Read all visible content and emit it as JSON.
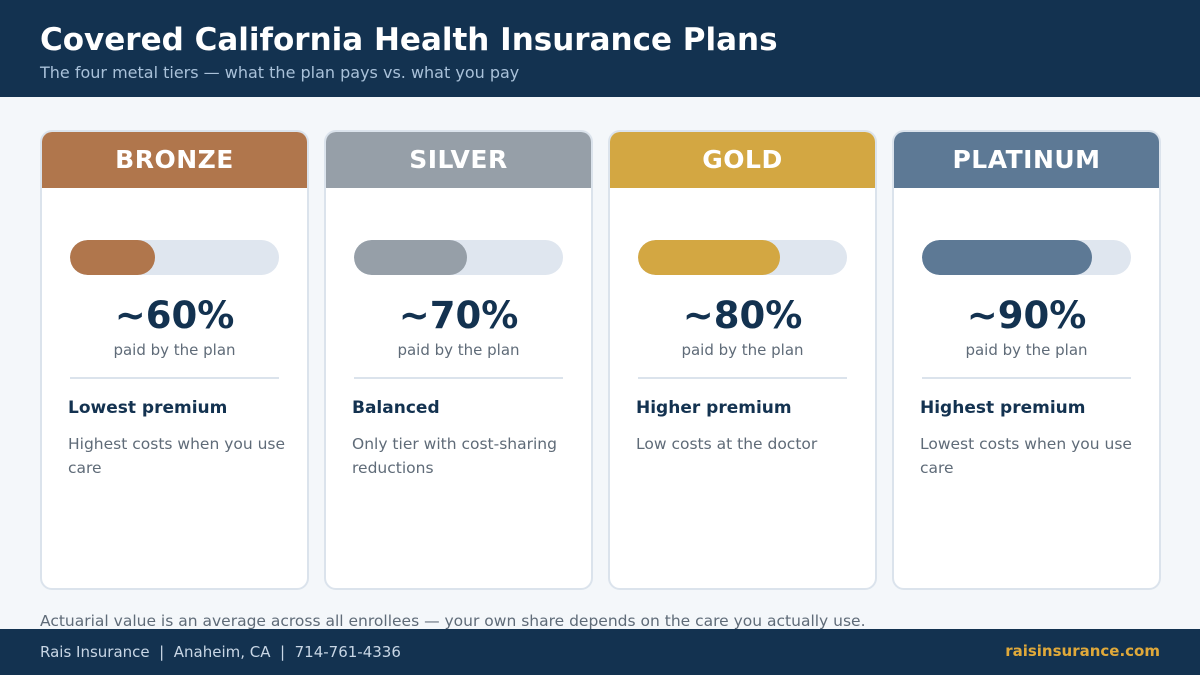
{
  "header": {
    "title": "Covered California Health Insurance Plans",
    "subtitle": "The four metal tiers — what the plan pays vs. what you pay"
  },
  "tiers": [
    {
      "name": "BRONZE",
      "color": "#b0764c",
      "plan_share": 0.6,
      "percent_label": "~60%",
      "percent_caption": "paid by the plan",
      "heading": "Lowest premium",
      "description": "Highest costs when you use care"
    },
    {
      "name": "SILVER",
      "color": "#969fa8",
      "plan_share": 0.7,
      "percent_label": "~70%",
      "percent_caption": "paid by the plan",
      "heading": "Balanced",
      "description": "Only tier with cost-sharing reductions"
    },
    {
      "name": "GOLD",
      "color": "#d3a742",
      "plan_share": 0.8,
      "percent_label": "~80%",
      "percent_caption": "paid by the plan",
      "heading": "Higher premium",
      "description": "Low costs at the doctor"
    },
    {
      "name": "PLATINUM",
      "color": "#5d7995",
      "plan_share": 0.9,
      "percent_label": "~90%",
      "percent_caption": "paid by the plan",
      "heading": "Highest premium",
      "description": "Lowest costs when you use care"
    }
  ],
  "footnote": "Actuarial value is an average across all enrollees — your own share depends on the care you actually use.",
  "footer": {
    "info": "Rais Insurance  |  Anaheim, CA  |  714-761-4336",
    "url": "raisinsurance.com"
  },
  "colors": {
    "navy": "#133250",
    "accent": "#e0a93a"
  }
}
